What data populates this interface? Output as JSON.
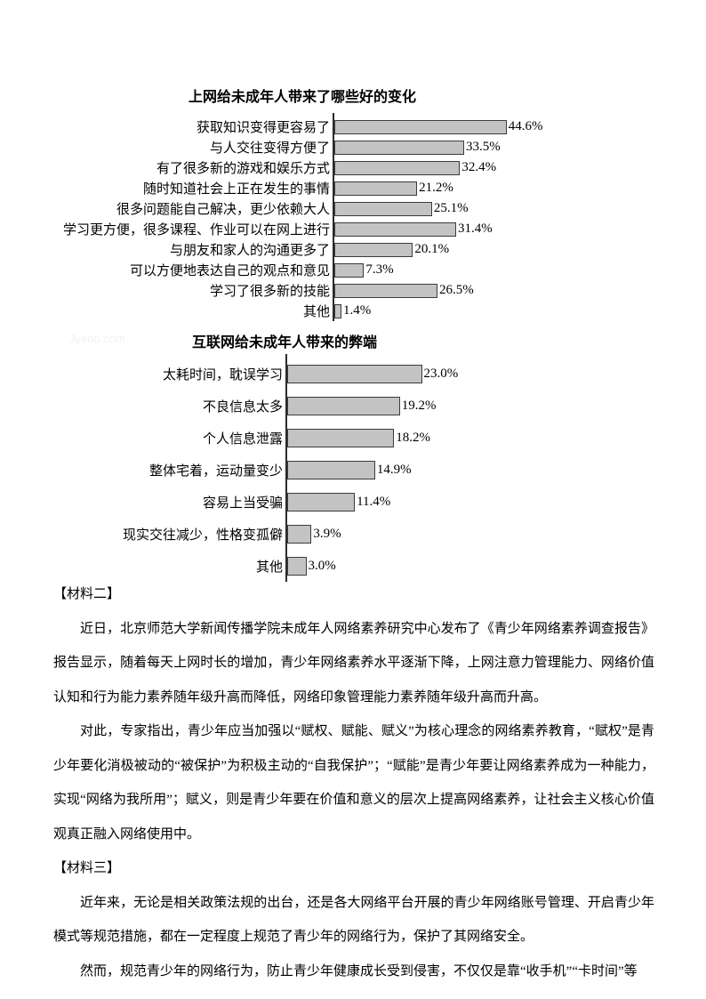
{
  "watermark": "Jyeoo.com",
  "chart_data": [
    {
      "type": "bar",
      "orientation": "horizontal",
      "title": "上网给未成年人带来了哪些好的变化",
      "xlabel": "",
      "ylabel": "",
      "xlim": [
        0,
        50
      ],
      "unit": "percent",
      "grid": false,
      "legend": "none",
      "bar_color": "#c3c3c3",
      "bar_border_color": "#3b3b3b",
      "items": [
        {
          "label": "获取知识变得更容易了",
          "value": 44.6,
          "text": "44.6%"
        },
        {
          "label": "与人交往变得方便了",
          "value": 33.5,
          "text": "33.5%"
        },
        {
          "label": "有了很多新的游戏和娱乐方式",
          "value": 32.4,
          "text": "32.4%"
        },
        {
          "label": "随时知道社会上正在发生的事情",
          "value": 21.2,
          "text": "21.2%"
        },
        {
          "label": "很多问题能自己解决，更少依赖大人",
          "value": 25.1,
          "text": "25.1%"
        },
        {
          "label": "学习更方便，很多课程、作业可以在网上进行",
          "value": 31.4,
          "text": "31.4%"
        },
        {
          "label": "与朋友和家人的沟通更多了",
          "value": 20.1,
          "text": "20.1%"
        },
        {
          "label": "可以方便地表达自己的观点和意见",
          "value": 7.3,
          "text": "7.3%"
        },
        {
          "label": "学习了很多新的技能",
          "value": 26.5,
          "text": "26.5%"
        },
        {
          "label": "其他",
          "value": 1.4,
          "text": "1.4%"
        }
      ]
    },
    {
      "type": "bar",
      "orientation": "horizontal",
      "title": "互联网给未成年人带来的弊端",
      "xlabel": "",
      "ylabel": "",
      "xlim": [
        0,
        25
      ],
      "unit": "percent",
      "grid": false,
      "legend": "none",
      "bar_color": "#c3c3c3",
      "bar_border_color": "#3b3b3b",
      "items": [
        {
          "label": "太耗时间，耽误学习",
          "value": 23.0,
          "text": "23.0%"
        },
        {
          "label": "不良信息太多",
          "value": 19.2,
          "text": "19.2%"
        },
        {
          "label": "个人信息泄露",
          "value": 18.2,
          "text": "18.2%"
        },
        {
          "label": "整体宅着，运动量变少",
          "value": 14.9,
          "text": "14.9%"
        },
        {
          "label": "容易上当受骗",
          "value": 11.4,
          "text": "11.4%"
        },
        {
          "label": "现实交往减少，性格变孤僻",
          "value": 3.9,
          "text": "3.9%"
        },
        {
          "label": "其他",
          "value": 3.0,
          "text": "3.0%"
        }
      ]
    }
  ],
  "materials": {
    "m2_heading": "【材料二】",
    "m2_p1": "近日，北京师范大学新闻传播学院未成年人网络素养研究中心发布了《青少年网络素养调查报告》报告显示，随着每天上网时长的增加，青少年网络素养水平逐渐下降，上网注意力管理能力、网络价值认知和行为能力素养随年级升高而降低，网络印象管理能力素养随年级升高而升高。",
    "m2_p2": "对此，专家指出，青少年应当加强以“赋权、赋能、赋义”为核心理念的网络素养教育，“赋权”是青少年要化消极被动的“被保护”为积极主动的“自我保护”；“赋能”是青少年要让网络素养成为一种能力，实现“网络为我所用”；赋义，则是青少年要在价值和意义的层次上提高网络素养，让社会主义核心价值观真正融入网络使用中。",
    "m3_heading": "【材料三】",
    "m3_p1": "近年来，无论是相关政策法规的出台，还是各大网络平台开展的青少年网络账号管理、开启青少年模式等规范措施，都在一定程度上规范了青少年的网络行为，保护了其网络安全。",
    "m3_p2": "然而，规范青少年的网络行为，防止青少年健康成长受到侵害，不仅仅是靠“收手机”“卡时间”等"
  }
}
